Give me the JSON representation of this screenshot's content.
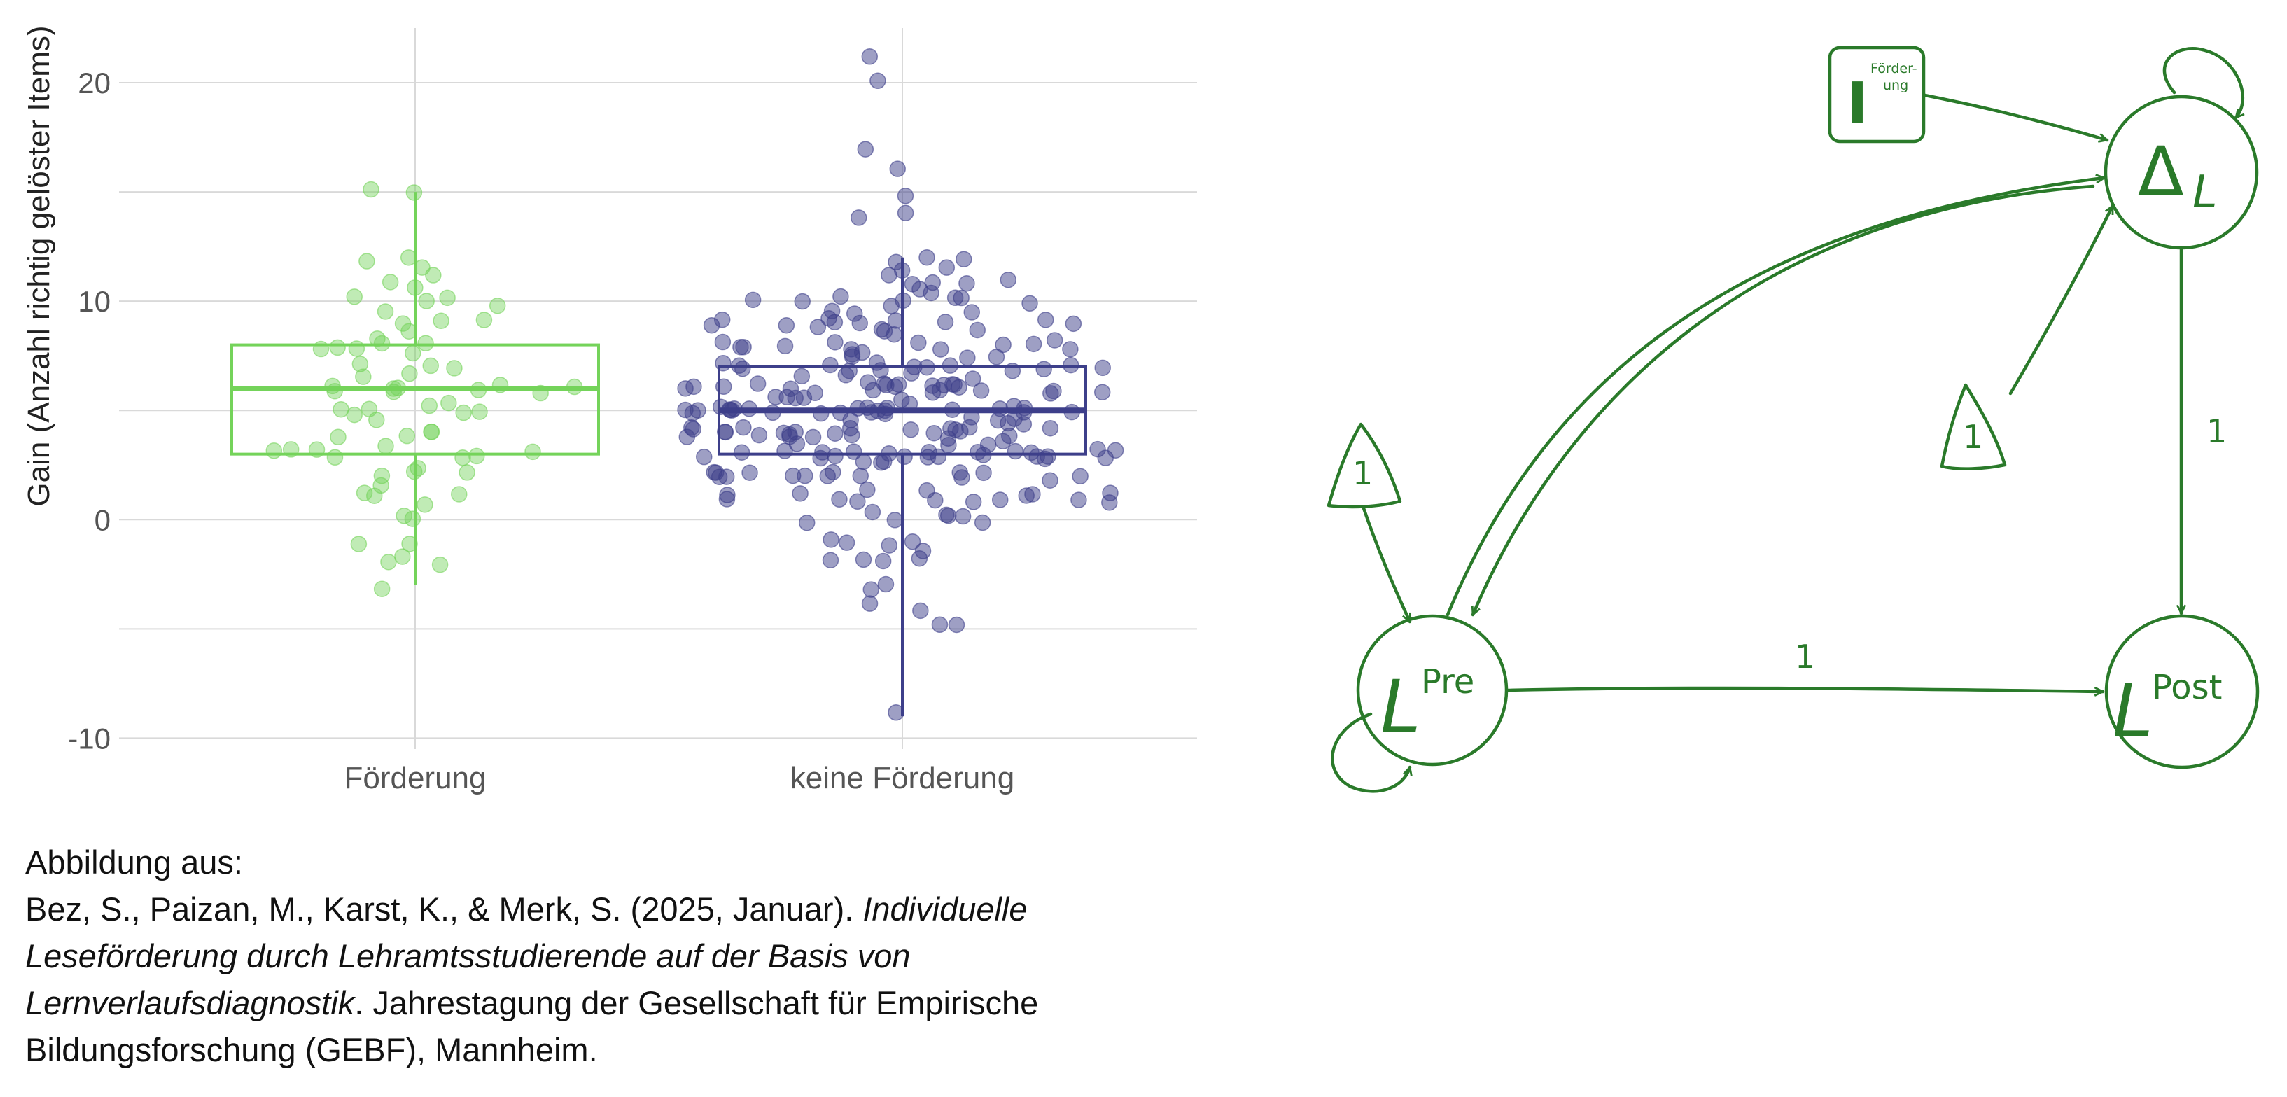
{
  "chart_data": {
    "type": "box",
    "ylabel": "Gain (Anzahl richtig gelöster Items)",
    "xlabel": "",
    "categories": [
      "Förderung",
      "keine Förderung"
    ],
    "ylim": [
      -10.5,
      22.5
    ],
    "yticks": [
      -10,
      0,
      10,
      20
    ],
    "grid": true,
    "legend": "none",
    "series": [
      {
        "category": "Förderung",
        "color": "#74d35a",
        "box": {
          "q1": 3,
          "median": 6,
          "q3": 8,
          "whisker_low": -3,
          "whisker_high": 15
        },
        "points": [
          15,
          15,
          12,
          12,
          11.5,
          11,
          11,
          10.5,
          10,
          10,
          10,
          10,
          9.5,
          9,
          9,
          9,
          8.5,
          8.5,
          8,
          8,
          8,
          8,
          8,
          7.5,
          7,
          7,
          7,
          6.5,
          6.5,
          6,
          6,
          6,
          6,
          6,
          6,
          6,
          6,
          6,
          5.5,
          5,
          5,
          5,
          5,
          5,
          5,
          4.5,
          4,
          4,
          4,
          4,
          3.5,
          3,
          3,
          3,
          3,
          3,
          3,
          3,
          2.5,
          2,
          2,
          2,
          1.5,
          1,
          1,
          1,
          0.5,
          0,
          0,
          -1,
          -1,
          -1.5,
          -2,
          -2,
          -3
        ]
      },
      {
        "category": "keine Förderung",
        "color": "#3d3f8a",
        "box": {
          "q1": 3,
          "median": 5,
          "q3": 7,
          "whisker_low": -9,
          "whisker_high": 12
        },
        "points": [
          21,
          20,
          17,
          16,
          15,
          14,
          14,
          12,
          12,
          12,
          11.5,
          11.5,
          11,
          11,
          11,
          11,
          11,
          10.5,
          10.5,
          10,
          10,
          10,
          10,
          10,
          10,
          10,
          10,
          9.5,
          9.5,
          9.5,
          9,
          9,
          9,
          9,
          9,
          9,
          9,
          9,
          9,
          9,
          9,
          8.5,
          8.5,
          8.5,
          8.5,
          8,
          8,
          8,
          8,
          8,
          8,
          8,
          8,
          8,
          8,
          8,
          8,
          7.5,
          7.5,
          7.5,
          7.5,
          7.5,
          7,
          7,
          7,
          7,
          7,
          7,
          7,
          7,
          7,
          7,
          7,
          7,
          7,
          7,
          6.5,
          6.5,
          6.5,
          6.5,
          6.5,
          6,
          6,
          6,
          6,
          6,
          6,
          6,
          6,
          6,
          6,
          6,
          6,
          6,
          6,
          6,
          6,
          6,
          6,
          6,
          6,
          6,
          6,
          5.5,
          5.5,
          5.5,
          5.5,
          5.5,
          5.5,
          5,
          5,
          5,
          5,
          5,
          5,
          5,
          5,
          5,
          5,
          5,
          5,
          5,
          5,
          5,
          5,
          5,
          5,
          5,
          5,
          5,
          5,
          5,
          5,
          5,
          4.5,
          4.5,
          4.5,
          4.5,
          4.5,
          4.5,
          4,
          4,
          4,
          4,
          4,
          4,
          4,
          4,
          4,
          4,
          4,
          4,
          4,
          4,
          4,
          4,
          4,
          4,
          4,
          4,
          4,
          4,
          4,
          3.5,
          3.5,
          3.5,
          3.5,
          3.5,
          3,
          3,
          3,
          3,
          3,
          3,
          3,
          3,
          3,
          3,
          3,
          3,
          3,
          3,
          3,
          3,
          3,
          3,
          3,
          3,
          3,
          3,
          2.5,
          2.5,
          2.5,
          2,
          2,
          2,
          2,
          2,
          2,
          2,
          2,
          2,
          2,
          2,
          2,
          2,
          2,
          2,
          1.5,
          1.5,
          1,
          1,
          1,
          1,
          1,
          1,
          1,
          1,
          1,
          1,
          1,
          1,
          1,
          0.5,
          0,
          0,
          0,
          0,
          0,
          0,
          -1,
          -1,
          -1,
          -1,
          -1.5,
          -2,
          -2,
          -2,
          -2,
          -3,
          -3,
          -4,
          -4,
          -5,
          -5,
          -9
        ]
      }
    ]
  },
  "diagram": {
    "nodes": {
      "delta": {
        "base": "Δ",
        "sub": "L"
      },
      "pre": {
        "base": "L",
        "sup": "Pre"
      },
      "post": {
        "base": "L",
        "sup": "Post"
      },
      "intervention": {
        "base": "I",
        "sup_line1": "Förder-",
        "sup_line2": "ung"
      },
      "const_pre": "1",
      "const_delta": "1"
    },
    "edge_labels": {
      "pre_to_post": "1",
      "delta_to_post": "1"
    },
    "colors": {
      "stroke": "#2a7a2a"
    }
  },
  "caption": {
    "line1": "Abbildung aus:",
    "line2_plain": "Bez, S., Paizan, M., Karst, K., & Merk, S. (2025, Januar). ",
    "line2_italic": "Individuelle",
    "line3_italic": "Leseförderung durch Lehramtsstudierende auf der Basis von",
    "line4_italic": "Lernverlaufsdiagnostik",
    "line4_plain": ". Jahrestagung der Gesellschaft für Empirische",
    "line5": "Bildungsforschung (GEBF), Mannheim."
  }
}
